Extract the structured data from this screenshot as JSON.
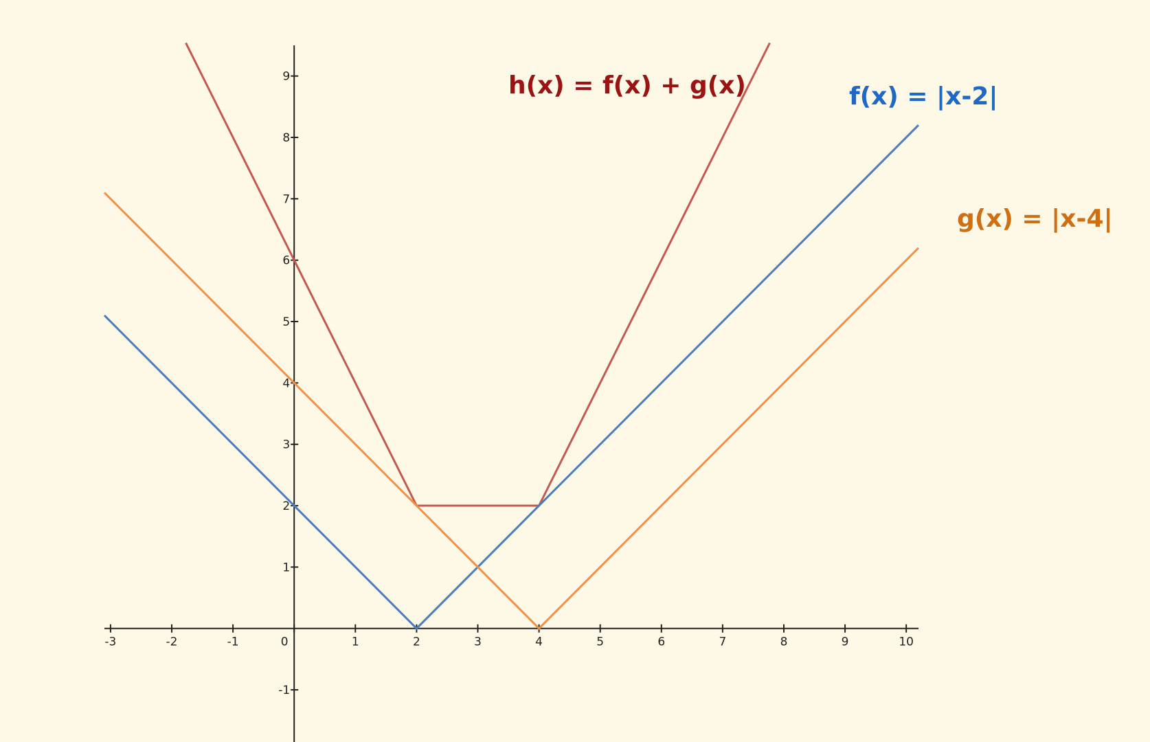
{
  "chart_data": {
    "type": "line",
    "xlim": [
      -3.1,
      10.2
    ],
    "ylim": [
      -1.85,
      9.5
    ],
    "x_ticks": [
      -3,
      -2,
      -1,
      0,
      1,
      2,
      3,
      4,
      5,
      6,
      7,
      8,
      9,
      10
    ],
    "y_ticks": [
      -1,
      1,
      2,
      3,
      4,
      5,
      6,
      7,
      8,
      9
    ],
    "grid": false,
    "background": "#fef8e7",
    "series": [
      {
        "name": "h(x) = f(x) + g(x)",
        "color": "#c35a52",
        "label_color": "#9a1414",
        "x": [
          -1.77,
          2,
          4,
          7.77
        ],
        "y": [
          9.54,
          2,
          2,
          9.54
        ]
      },
      {
        "name": "f(x) = |x-2|",
        "color": "#4d7cbb",
        "label_color": "#1f68c6",
        "x": [
          -3.1,
          2,
          10.2
        ],
        "y": [
          5.1,
          0,
          8.2
        ]
      },
      {
        "name": "g(x) = |x-4|",
        "color": "#f0914a",
        "label_color": "#cf6f12",
        "x": [
          -3.1,
          4,
          10.2
        ],
        "y": [
          7.1,
          0,
          6.2
        ]
      }
    ]
  }
}
